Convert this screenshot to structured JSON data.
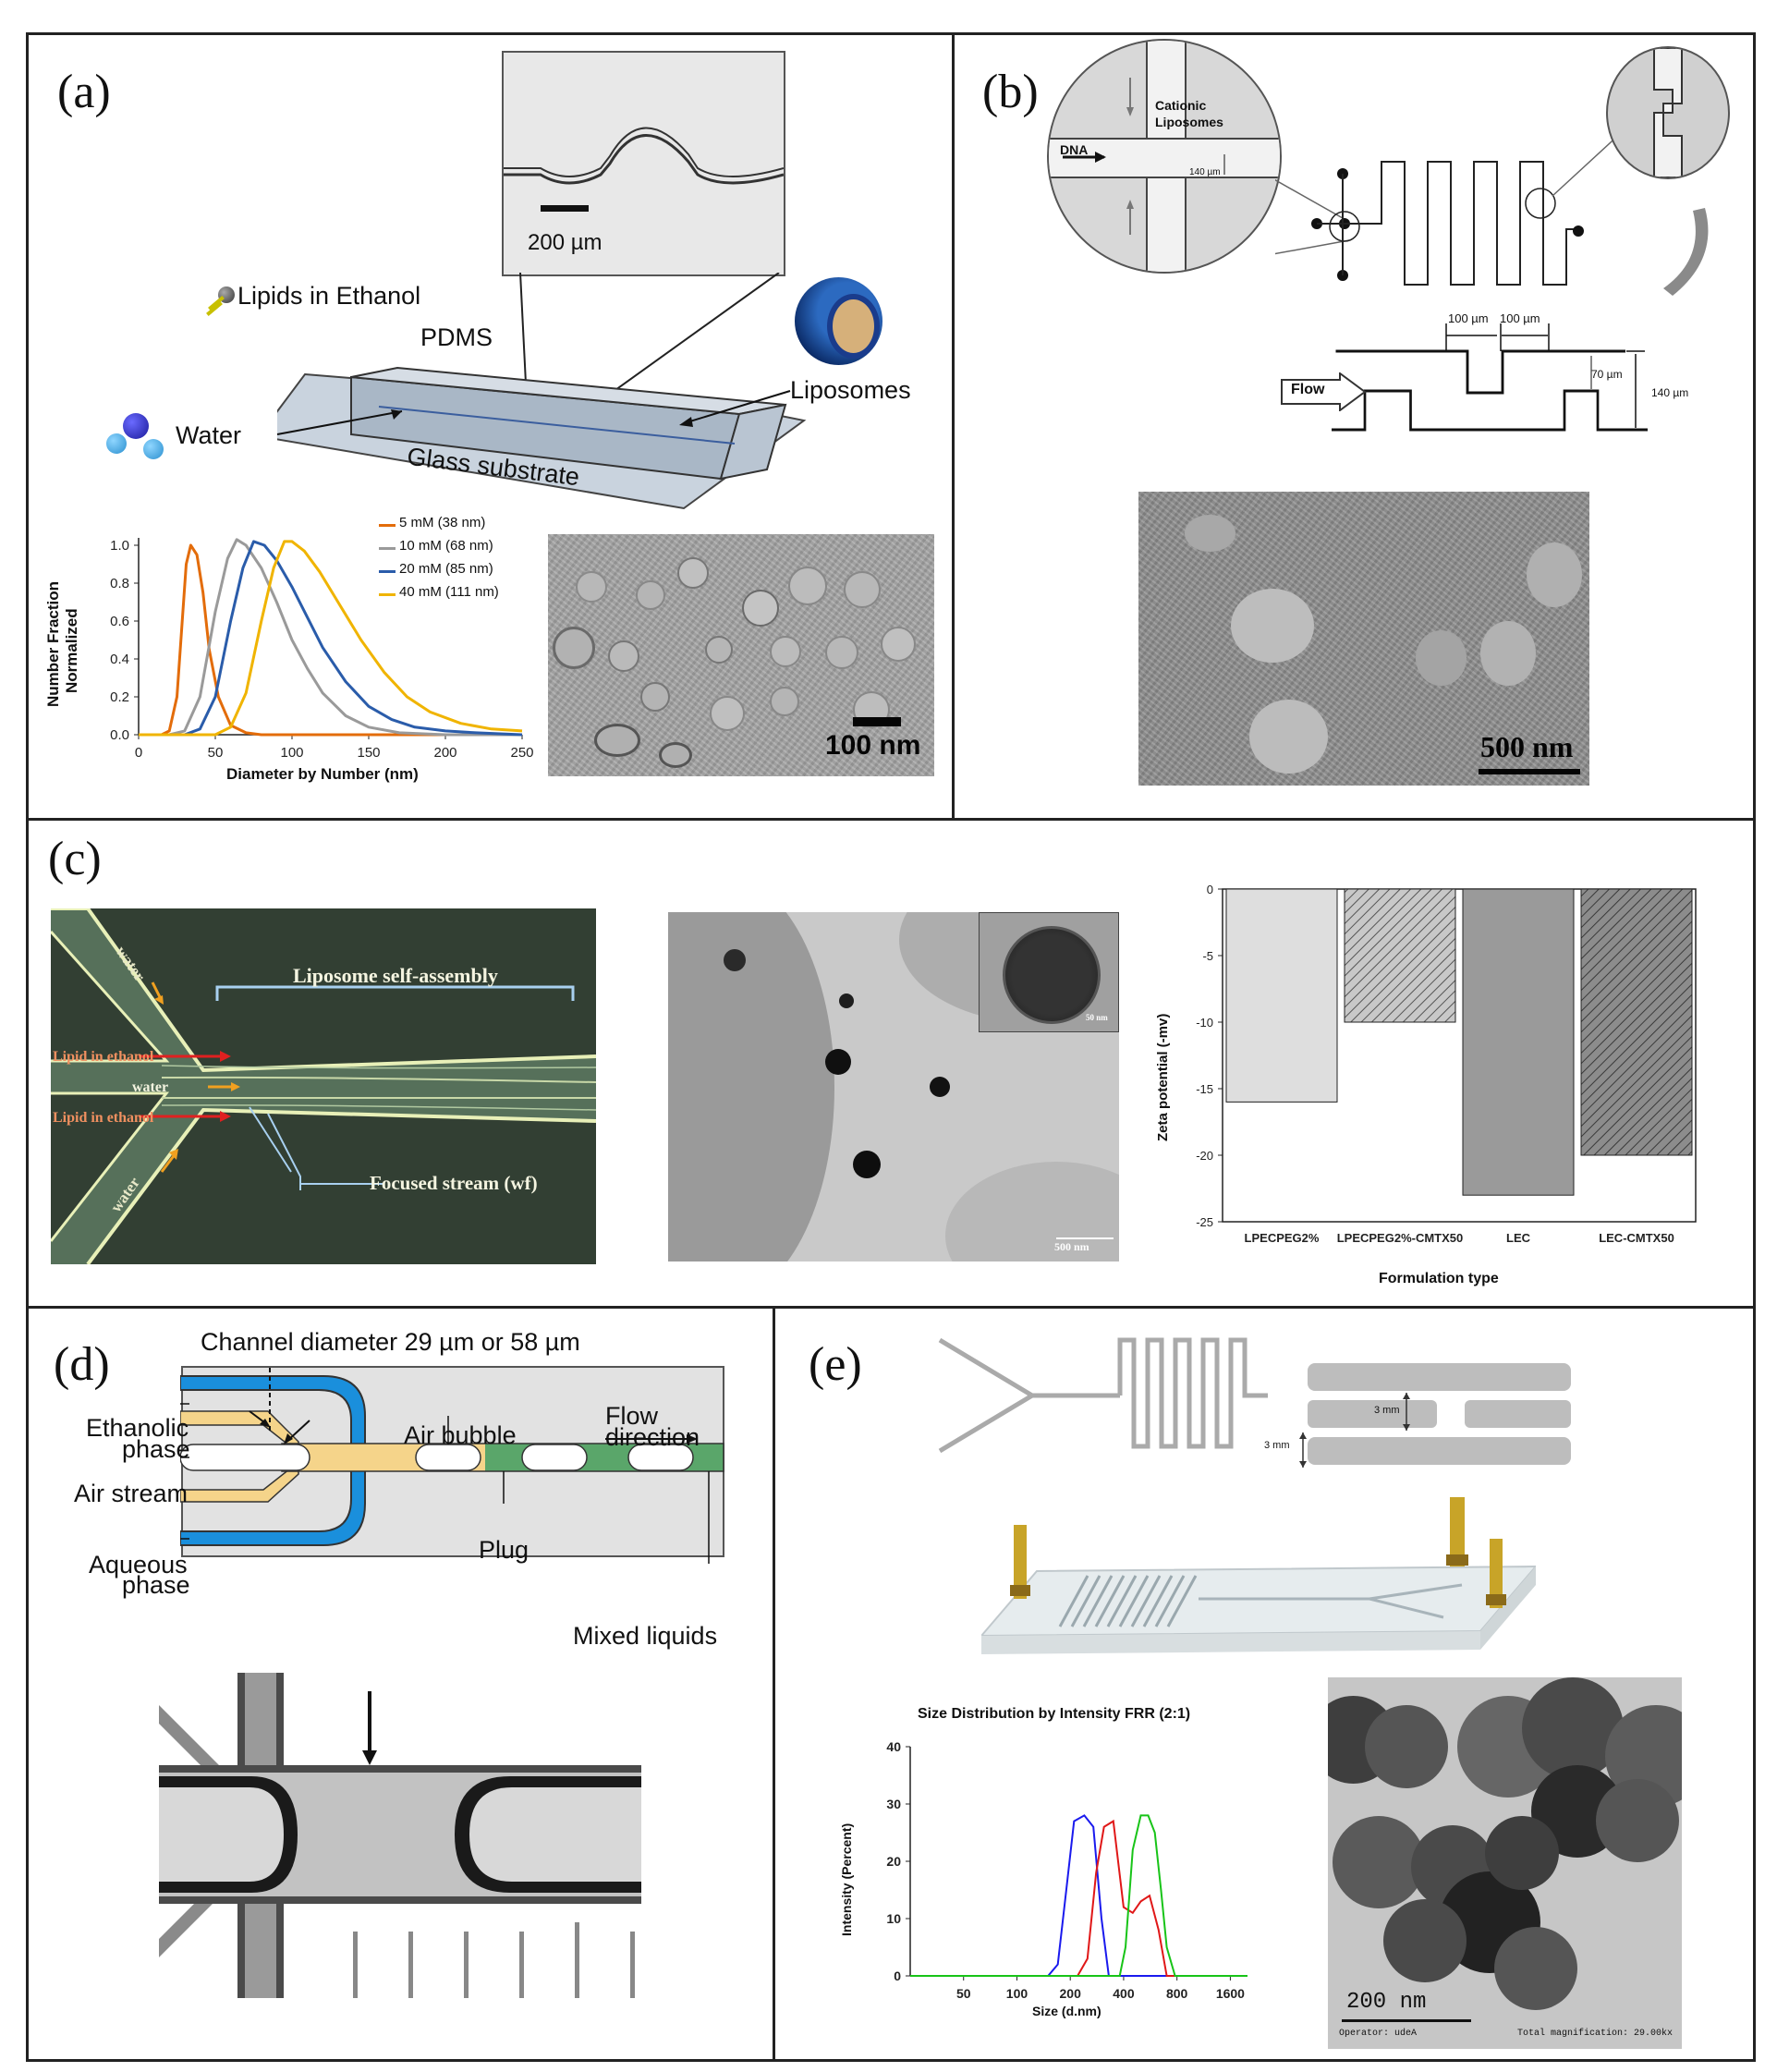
{
  "panels": {
    "a": {
      "label": "(a)",
      "inset_scale": "200 µm",
      "lipids_label": "Lipids in Ethanol",
      "pdms_label": "PDMS",
      "water_label": "Water",
      "liposomes_label": "Liposomes",
      "glass_label": "Glass substrate",
      "tem_scale": "100 nm"
    },
    "b": {
      "label": "(b)",
      "cationic": "Cationic",
      "liposomes": "Liposomes",
      "dna": "DNA",
      "width_140": "140 µm",
      "dim_100a": "100 µm",
      "dim_100b": "100 µm",
      "dim_70": "70 µm",
      "dim_140": "140 µm",
      "flow": "Flow",
      "tem_scale": "500 nm"
    },
    "c": {
      "label": "(c)",
      "water_top": "water",
      "self_assembly": "Liposome self-assembly",
      "lipid1": "Lipid in ethanol",
      "water_mid": "water",
      "lipid2": "Lipid in ethanol",
      "focused": "Focused stream (wf)",
      "water_bottom": "water",
      "tem_scale": "500 nm",
      "inset_scale": "50 nm"
    },
    "d": {
      "label": "(d)",
      "channel_diameter": "Channel diameter 29 µm or 58 µm",
      "ethanolic": "Ethanolic",
      "ethanolic2": "phase",
      "air_bubble": "Air bubble",
      "flow1": "Flow",
      "flow2": "direction",
      "air_stream": "Air stream",
      "plug": "Plug",
      "aqueous": "Aqueous",
      "aqueous2": "phase",
      "mixed": "Mixed liquids"
    },
    "e": {
      "label": "(e)",
      "dim_3mm_a": "3 mm",
      "dim_3mm_b": "3 mm",
      "tem_scale": "200 nm",
      "operator": "Operator: udeA",
      "magnification": "Total magnification: 29.00kx"
    }
  },
  "chart_data": [
    {
      "type": "line",
      "panel": "a",
      "xlabel": "Diameter by Number (nm)",
      "ylabel": "Number Fraction Normalized",
      "ylabel_lines": [
        "Number Fraction",
        "Normalized"
      ],
      "xlim": [
        0,
        250
      ],
      "ylim": [
        0,
        1.0
      ],
      "xticks": [
        "0",
        "50",
        "100",
        "150",
        "200",
        "250"
      ],
      "yticks": [
        "0.0",
        "0.2",
        "0.4",
        "0.6",
        "0.8",
        "1.0"
      ],
      "series": [
        {
          "name": "5 mM  (38 nm)",
          "color": "#e36c0a",
          "x": [
            0,
            15,
            20,
            25,
            28,
            31,
            34,
            38,
            42,
            46,
            52,
            60,
            70,
            80,
            250
          ],
          "y": [
            0,
            0,
            0.02,
            0.2,
            0.55,
            0.9,
            1.0,
            0.95,
            0.75,
            0.45,
            0.2,
            0.05,
            0.01,
            0,
            0
          ]
        },
        {
          "name": "10 mM (68 nm)",
          "color": "#9a9a9a",
          "x": [
            0,
            20,
            30,
            40,
            50,
            58,
            64,
            70,
            80,
            90,
            100,
            110,
            120,
            135,
            150,
            170,
            200,
            250
          ],
          "y": [
            0,
            0,
            0.02,
            0.2,
            0.65,
            0.93,
            1.03,
            1.0,
            0.88,
            0.7,
            0.5,
            0.35,
            0.22,
            0.1,
            0.04,
            0.01,
            0,
            0
          ]
        },
        {
          "name": "20 mM (85 nm)",
          "color": "#2a5caa",
          "x": [
            0,
            30,
            40,
            50,
            60,
            68,
            75,
            82,
            90,
            100,
            110,
            120,
            135,
            150,
            165,
            180,
            200,
            220,
            250
          ],
          "y": [
            0,
            0,
            0.03,
            0.2,
            0.6,
            0.88,
            1.02,
            1.0,
            0.92,
            0.78,
            0.62,
            0.46,
            0.28,
            0.15,
            0.08,
            0.04,
            0.02,
            0.01,
            0
          ]
        },
        {
          "name": "40 mM (111 nm)",
          "color": "#f0b400",
          "x": [
            0,
            50,
            60,
            70,
            80,
            88,
            95,
            100,
            108,
            118,
            130,
            145,
            160,
            175,
            190,
            210,
            230,
            250
          ],
          "y": [
            0,
            0,
            0.04,
            0.22,
            0.6,
            0.88,
            1.02,
            1.02,
            0.97,
            0.86,
            0.7,
            0.5,
            0.33,
            0.2,
            0.12,
            0.06,
            0.03,
            0.02
          ]
        }
      ]
    },
    {
      "type": "bar",
      "panel": "c",
      "xlabel": "Formulation type",
      "ylabel": "Zeta potential (-mv)",
      "categories": [
        "LPECPEG2%",
        "LPECPEG2%-CMTX50",
        "LEC",
        "LEC-CMTX50"
      ],
      "values": [
        -16,
        -10,
        -23,
        -20
      ],
      "ylim": [
        -25,
        0
      ],
      "yticks": [
        "0",
        "-5",
        "-10",
        "-15",
        "-20",
        "-25"
      ],
      "bar_styles": [
        "light",
        "hatched",
        "solid-gray",
        "hatched-dark"
      ]
    },
    {
      "type": "line",
      "panel": "e",
      "title": "Size Distribution by Intensity FRR  (2:1)",
      "xlabel": "Size (d.nm)",
      "ylabel": "Intensity (Percent)",
      "xticks": [
        "50",
        "100",
        "200",
        "400",
        "800",
        "1600"
      ],
      "yticks": [
        "0",
        "10",
        "20",
        "30",
        "40"
      ],
      "xscale": "log",
      "xlim": [
        25,
        2000
      ],
      "ylim": [
        0,
        40
      ],
      "series": [
        {
          "color": "#1a1aee",
          "x": [
            25,
            150,
            170,
            190,
            210,
            240,
            270,
            300,
            330,
            2000
          ],
          "y": [
            0,
            0,
            2,
            15,
            27,
            28,
            26,
            10,
            0,
            0
          ]
        },
        {
          "color": "#e01818",
          "x": [
            25,
            220,
            250,
            280,
            310,
            350,
            400,
            450,
            500,
            560,
            630,
            700,
            2000
          ],
          "y": [
            0,
            0,
            3,
            18,
            26,
            27,
            12,
            11,
            13,
            14,
            8,
            0,
            0
          ]
        },
        {
          "color": "#18c418",
          "x": [
            25,
            380,
            410,
            450,
            500,
            550,
            600,
            650,
            700,
            780,
            2000
          ],
          "y": [
            0,
            0,
            5,
            22,
            28,
            28,
            25,
            15,
            5,
            0,
            0
          ]
        }
      ]
    }
  ]
}
